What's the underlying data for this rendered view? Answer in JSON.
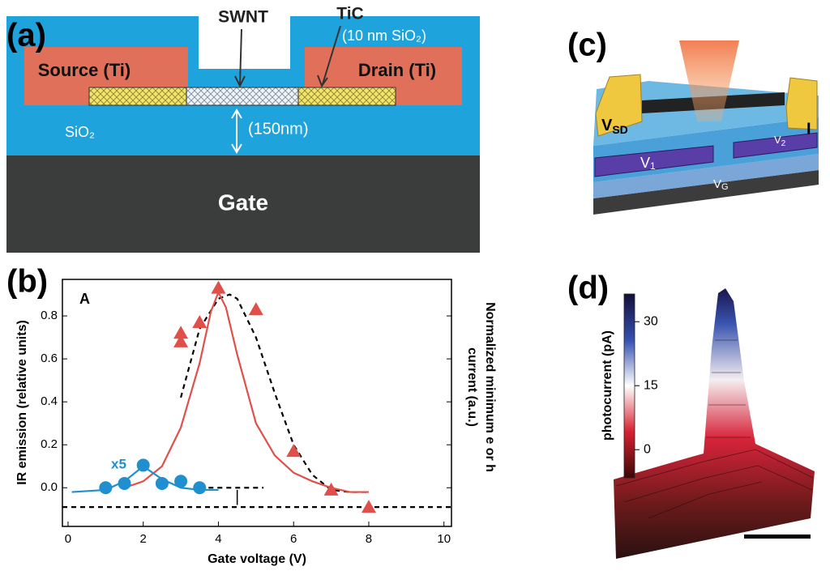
{
  "panel_a": {
    "label": "(a)",
    "swnt": "SWNT",
    "tic": "TiC",
    "top_oxide": "(10 nm SiO₂)",
    "source": "Source (Ti)",
    "drain": "Drain (Ti)",
    "oxide": "SiO₂",
    "thickness": "(150nm)",
    "gate": "Gate"
  },
  "chart_data": {
    "type": "scatter",
    "label": "(b)",
    "panel_tag": "A",
    "annotation": "x5",
    "xlabel": "Gate voltage (V)",
    "ylabel": "IR emission (relative units)",
    "y2label": [
      "Normalized minimum e or h",
      "current (a.u.)"
    ],
    "xlim": [
      -0.15,
      10.2
    ],
    "ylim": [
      -0.18,
      0.97
    ],
    "xticks": [
      0,
      2,
      4,
      6,
      8,
      10
    ],
    "yticks": [
      {
        "value": 0,
        "label": "0.0"
      },
      {
        "value": 0.2,
        "label": "0.2"
      },
      {
        "value": 0.4,
        "label": "0.4"
      },
      {
        "value": 0.6,
        "label": "0.6"
      },
      {
        "value": 0.8,
        "label": "0.8"
      }
    ],
    "series": [
      {
        "kind": "dashed",
        "color": "#000000",
        "x": [
          -0.15,
          10.2
        ],
        "values": [
          -0.09,
          -0.09
        ]
      },
      {
        "kind": "dashed",
        "color": "#000000",
        "x": [
          3.5,
          5.2
        ],
        "values": [
          0,
          0
        ]
      },
      {
        "kind": "dashed",
        "color": "#000000",
        "x": [
          3,
          3.5,
          4,
          4.3,
          4.5,
          5,
          5.5,
          6,
          6.5,
          7,
          7.5,
          8
        ],
        "values": [
          0.42,
          0.74,
          0.88,
          0.9,
          0.88,
          0.7,
          0.44,
          0.2,
          0.06,
          -0.01,
          -0.02,
          -0.02
        ]
      },
      {
        "kind": "line",
        "color": "#e0504a",
        "x": [
          1.5,
          2,
          2.5,
          3,
          3.5,
          3.8,
          4,
          4.2,
          4.5,
          5,
          5.5,
          6,
          6.5,
          7,
          7.5,
          8
        ],
        "values": [
          0,
          0.03,
          0.1,
          0.28,
          0.58,
          0.82,
          0.91,
          0.84,
          0.62,
          0.3,
          0.15,
          0.07,
          0.03,
          0,
          -0.02,
          -0.02
        ]
      },
      {
        "kind": "line",
        "color": "#1f8fcf",
        "x": [
          0.1,
          1,
          1.5,
          2,
          2.5,
          3,
          3.5,
          4
        ],
        "values": [
          -0.02,
          -0.01,
          0.03,
          0.1,
          0.04,
          0,
          -0.01,
          -0.01
        ]
      },
      {
        "kind": "circle",
        "color": "#1f8fcf",
        "x": [
          1,
          1.5,
          2,
          2.5,
          3,
          3.5
        ],
        "values": [
          0,
          0.02,
          0.105,
          0.02,
          0.03,
          0
        ]
      },
      {
        "kind": "triangle",
        "color": "#e0504a",
        "x": [
          3,
          3,
          3.5,
          4,
          5,
          6,
          7,
          8
        ],
        "values": [
          0.72,
          0.68,
          0.77,
          0.93,
          0.83,
          0.17,
          -0.01,
          -0.09
        ]
      }
    ]
  },
  "panel_c": {
    "label": "(c)",
    "vsd": {
      "main": "V",
      "sub": "SD"
    },
    "current": "I",
    "v1": {
      "main": "V",
      "sub": "1"
    },
    "v2": {
      "main": "V",
      "sub": "2"
    },
    "vg": {
      "main": "V",
      "sub": "G"
    }
  },
  "panel_d": {
    "label": "(d)",
    "colorbar": {
      "label": "photocurrent (pA)",
      "lim": [
        -6.6,
        36.5
      ],
      "ticks": [
        0,
        15,
        30
      ]
    }
  }
}
